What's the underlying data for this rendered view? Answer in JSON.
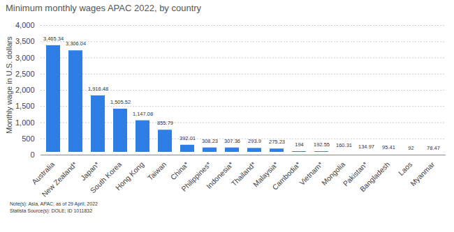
{
  "chart_data": {
    "type": "bar",
    "title": "Minimum monthly wages APAC 2022, by country",
    "y_label": "Monthly wage in U.S. dollars",
    "categories": [
      "Australia",
      "New Zealand*",
      "Japan*",
      "South Korea",
      "Hong Kong",
      "Taiwan",
      "China*",
      "Philippines*",
      "Indonesia*",
      "Thailand*",
      "Malaysia*",
      "Cambodia*",
      "Vietnam*",
      "Mongolia",
      "Pakistan*",
      "Bangladesh",
      "Laos",
      "Myanmar"
    ],
    "values": [
      3465.34,
      3306.04,
      1916.48,
      1505.52,
      1147.08,
      855.79,
      392.01,
      308.23,
      307.36,
      293.9,
      275.23,
      194,
      192.55,
      160.31,
      134.97,
      95.41,
      92,
      78.47
    ],
    "value_labels": [
      "3,465.34",
      "3,306.04",
      "1,916.48",
      "1,505.52",
      "1,147.08",
      "855.79",
      "392.01",
      "308.23",
      "307.36",
      "293.9",
      "275.23",
      "194",
      "192.55",
      "160.31",
      "134.97",
      "95.41",
      "92",
      "78.47"
    ],
    "data_labels": true,
    "color": "#2f7ee6",
    "ylim": [
      0,
      4000
    ],
    "yticks": [
      0,
      500,
      {
        "value": 1000,
        "label": "1,000"
      },
      {
        "value": 1500,
        "label": "1,500"
      },
      {
        "value": 2000,
        "label": "2,000"
      },
      {
        "value": 2500,
        "label": "2,500"
      },
      {
        "value": 3000,
        "label": "3,000"
      },
      {
        "value": 3500,
        "label": "3,500"
      },
      {
        "value": 4000,
        "label": "4,000"
      }
    ],
    "grid": true,
    "note": "Note(s): Asia, APAC; as of 29 April, 2022",
    "source": "Statista Source(s): DOLE; ID 1011832"
  }
}
